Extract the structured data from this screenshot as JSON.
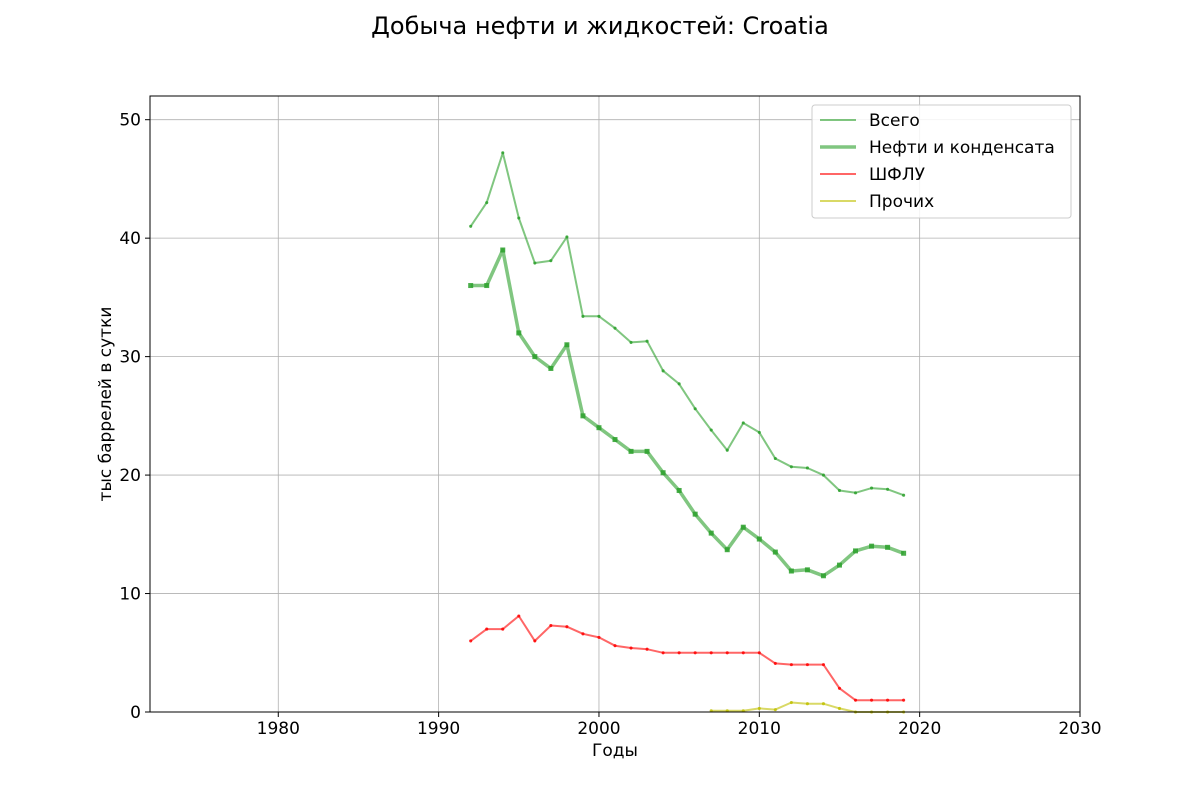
{
  "chart_data": {
    "type": "line",
    "title": "Добыча нефти и жидкостей: Croatia",
    "xlabel": "Годы",
    "ylabel": "тыс баррелей в сутки",
    "xlim": [
      1972,
      2030
    ],
    "ylim": [
      0,
      52
    ],
    "xticks": [
      1980,
      1990,
      2000,
      2010,
      2020,
      2030
    ],
    "yticks": [
      0,
      10,
      20,
      30,
      40,
      50
    ],
    "grid": true,
    "legend_position": "top-right",
    "series": [
      {
        "name": "Всего",
        "color": "#2ca02c",
        "x": [
          1992,
          1993,
          1994,
          1995,
          1996,
          1997,
          1998,
          1999,
          2000,
          2001,
          2002,
          2003,
          2004,
          2005,
          2006,
          2007,
          2008,
          2009,
          2010,
          2011,
          2012,
          2013,
          2014,
          2015,
          2016,
          2017,
          2018,
          2019
        ],
        "y": [
          41.0,
          43.0,
          47.2,
          41.7,
          37.9,
          38.1,
          40.1,
          33.4,
          33.4,
          32.4,
          31.2,
          31.3,
          28.8,
          27.7,
          25.6,
          23.8,
          22.1,
          24.4,
          23.6,
          21.4,
          20.7,
          20.6,
          20.0,
          18.7,
          18.5,
          18.9,
          18.8,
          18.3
        ]
      },
      {
        "name": "Нефти и конденсата",
        "color": "#2ca02c",
        "x": [
          1992,
          1993,
          1994,
          1995,
          1996,
          1997,
          1998,
          1999,
          2000,
          2001,
          2002,
          2003,
          2004,
          2005,
          2006,
          2007,
          2008,
          2009,
          2010,
          2011,
          2012,
          2013,
          2014,
          2015,
          2016,
          2017,
          2018,
          2019
        ],
        "y": [
          36.0,
          36.0,
          39.0,
          32.0,
          30.0,
          29.0,
          31.0,
          25.0,
          24.0,
          23.0,
          22.0,
          22.0,
          20.2,
          18.7,
          16.7,
          15.1,
          13.7,
          15.6,
          14.6,
          13.5,
          11.9,
          12.0,
          11.5,
          12.4,
          13.6,
          14.0,
          13.9,
          13.4
        ]
      },
      {
        "name": "ШФЛУ",
        "color": "#ff0000",
        "x": [
          1992,
          1993,
          1994,
          1995,
          1996,
          1997,
          1998,
          1999,
          2000,
          2001,
          2002,
          2003,
          2004,
          2005,
          2006,
          2007,
          2008,
          2009,
          2010,
          2011,
          2012,
          2013,
          2014,
          2015,
          2016,
          2017,
          2018,
          2019
        ],
        "y": [
          6.0,
          7.0,
          7.0,
          8.1,
          6.0,
          7.3,
          7.2,
          6.6,
          6.3,
          5.6,
          5.4,
          5.3,
          5.0,
          5.0,
          5.0,
          5.0,
          5.0,
          5.0,
          5.0,
          4.1,
          4.0,
          4.0,
          4.0,
          2.0,
          1.0,
          1.0,
          1.0,
          1.0
        ]
      },
      {
        "name": "Прочих",
        "color": "#bfbf00",
        "x": [
          2007,
          2008,
          2009,
          2010,
          2011,
          2012,
          2013,
          2014,
          2015,
          2016,
          2017,
          2018,
          2019
        ],
        "y": [
          0.1,
          0.1,
          0.1,
          0.3,
          0.2,
          0.8,
          0.7,
          0.7,
          0.3,
          0.0,
          0.0,
          0.0,
          0.0
        ]
      }
    ]
  }
}
